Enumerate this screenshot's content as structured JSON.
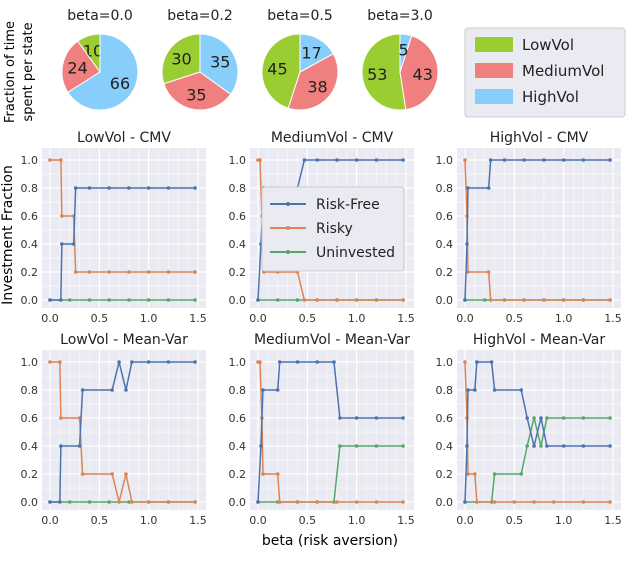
{
  "colors": {
    "LowVol": "#9acd32",
    "MediumVol": "#f08080",
    "HighVol": "#87cefa",
    "Risk-Free": "#4c72b0",
    "Risky": "#dd8452",
    "Uninvested": "#55a868",
    "plot_bg": "#eaeaf2"
  },
  "pie_ylabel": [
    "Fraction of time",
    "spent per state"
  ],
  "pie_legend": [
    "LowVol",
    "MediumVol",
    "HighVol"
  ],
  "pies": [
    {
      "title": "beta=0.0",
      "values": [
        10,
        24,
        66
      ]
    },
    {
      "title": "beta=0.2",
      "values": [
        30,
        35,
        35
      ]
    },
    {
      "title": "beta=0.5",
      "values": [
        45,
        38,
        17
      ]
    },
    {
      "title": "beta=3.0",
      "values": [
        53,
        43,
        5
      ]
    }
  ],
  "chart_data": {
    "type": "line",
    "ylabel": "Investment Fraction",
    "xlabel": "beta (risk aversion)",
    "xlim": [
      0,
      1.5
    ],
    "ylim": [
      0,
      1
    ],
    "xticks": [
      "0.0",
      "0.5",
      "1.0",
      "1.5"
    ],
    "yticks": [
      "0.0",
      "0.2",
      "0.4",
      "0.6",
      "0.8",
      "1.0"
    ],
    "grid": true,
    "legend": {
      "entries": [
        "Risk-Free",
        "Risky",
        "Uninvested"
      ],
      "placement": "center (MediumVol - CMV panel)"
    },
    "panels": [
      {
        "title": "LowVol - CMV",
        "series": [
          {
            "name": "Risk-Free",
            "points": [
              [
                0,
                0
              ],
              [
                0.11,
                0
              ],
              [
                0.12,
                0.4
              ],
              [
                0.24,
                0.4
              ],
              [
                0.26,
                0.8
              ],
              [
                0.4,
                0.8
              ],
              [
                0.6,
                0.8
              ],
              [
                0.8,
                0.8
              ],
              [
                1.0,
                0.8
              ],
              [
                1.2,
                0.8
              ],
              [
                1.47,
                0.8
              ]
            ]
          },
          {
            "name": "Risky",
            "points": [
              [
                0,
                1
              ],
              [
                0.11,
                1
              ],
              [
                0.12,
                0.6
              ],
              [
                0.24,
                0.6
              ],
              [
                0.26,
                0.2
              ],
              [
                0.4,
                0.2
              ],
              [
                0.6,
                0.2
              ],
              [
                0.8,
                0.2
              ],
              [
                1.0,
                0.2
              ],
              [
                1.2,
                0.2
              ],
              [
                1.47,
                0.2
              ]
            ]
          },
          {
            "name": "Uninvested",
            "points": [
              [
                0,
                0
              ],
              [
                0.2,
                0
              ],
              [
                0.4,
                0
              ],
              [
                0.6,
                0
              ],
              [
                0.8,
                0
              ],
              [
                1.0,
                0
              ],
              [
                1.2,
                0
              ],
              [
                1.47,
                0
              ]
            ]
          }
        ]
      },
      {
        "title": "MediumVol - CMV",
        "series": [
          {
            "name": "Risk-Free",
            "points": [
              [
                0,
                0
              ],
              [
                0.03,
                0.4
              ],
              [
                0.06,
                0.8
              ],
              [
                0.2,
                0.8
              ],
              [
                0.4,
                0.8
              ],
              [
                0.47,
                1.0
              ],
              [
                0.6,
                1.0
              ],
              [
                0.8,
                1.0
              ],
              [
                1.0,
                1.0
              ],
              [
                1.2,
                1.0
              ],
              [
                1.47,
                1.0
              ]
            ]
          },
          {
            "name": "Risky",
            "points": [
              [
                0,
                1
              ],
              [
                0.02,
                1
              ],
              [
                0.04,
                0.6
              ],
              [
                0.06,
                0.2
              ],
              [
                0.2,
                0.2
              ],
              [
                0.4,
                0.2
              ],
              [
                0.47,
                0
              ],
              [
                0.6,
                0
              ],
              [
                0.8,
                0
              ],
              [
                1.0,
                0
              ],
              [
                1.2,
                0
              ],
              [
                1.47,
                0
              ]
            ]
          },
          {
            "name": "Uninvested",
            "points": [
              [
                0,
                0
              ],
              [
                0.2,
                0
              ],
              [
                0.4,
                0
              ],
              [
                0.6,
                0
              ],
              [
                0.8,
                0
              ],
              [
                1.0,
                0
              ],
              [
                1.2,
                0
              ],
              [
                1.47,
                0
              ]
            ]
          }
        ]
      },
      {
        "title": "HighVol - CMV",
        "series": [
          {
            "name": "Risk-Free",
            "points": [
              [
                0,
                0
              ],
              [
                0.02,
                0.4
              ],
              [
                0.03,
                0.8
              ],
              [
                0.24,
                0.8
              ],
              [
                0.26,
                1.0
              ],
              [
                0.4,
                1.0
              ],
              [
                0.6,
                1.0
              ],
              [
                0.8,
                1.0
              ],
              [
                1.0,
                1.0
              ],
              [
                1.2,
                1.0
              ],
              [
                1.47,
                1.0
              ]
            ]
          },
          {
            "name": "Risky",
            "points": [
              [
                0,
                1
              ],
              [
                0.02,
                0.6
              ],
              [
                0.03,
                0.2
              ],
              [
                0.24,
                0.2
              ],
              [
                0.26,
                0
              ],
              [
                0.4,
                0
              ],
              [
                0.6,
                0
              ],
              [
                0.8,
                0
              ],
              [
                1.0,
                0
              ],
              [
                1.2,
                0
              ],
              [
                1.47,
                0
              ]
            ]
          },
          {
            "name": "Uninvested",
            "points": [
              [
                0,
                0
              ],
              [
                0.2,
                0
              ],
              [
                0.4,
                0
              ],
              [
                0.6,
                0
              ],
              [
                0.8,
                0
              ],
              [
                1.0,
                0
              ],
              [
                1.2,
                0
              ],
              [
                1.47,
                0
              ]
            ]
          }
        ]
      },
      {
        "title": "LowVol - Mean-Var",
        "series": [
          {
            "name": "Risk-Free",
            "points": [
              [
                0,
                0
              ],
              [
                0.1,
                0
              ],
              [
                0.11,
                0.4
              ],
              [
                0.3,
                0.4
              ],
              [
                0.33,
                0.8
              ],
              [
                0.63,
                0.8
              ],
              [
                0.7,
                1.0
              ],
              [
                0.77,
                0.8
              ],
              [
                0.83,
                1.0
              ],
              [
                1.0,
                1.0
              ],
              [
                1.2,
                1.0
              ],
              [
                1.47,
                1.0
              ]
            ]
          },
          {
            "name": "Risky",
            "points": [
              [
                0,
                1
              ],
              [
                0.1,
                1
              ],
              [
                0.11,
                0.6
              ],
              [
                0.3,
                0.6
              ],
              [
                0.33,
                0.2
              ],
              [
                0.63,
                0.2
              ],
              [
                0.7,
                0
              ],
              [
                0.77,
                0.2
              ],
              [
                0.83,
                0
              ],
              [
                1.0,
                0
              ],
              [
                1.2,
                0
              ],
              [
                1.47,
                0
              ]
            ]
          },
          {
            "name": "Uninvested",
            "points": [
              [
                0,
                0
              ],
              [
                0.2,
                0
              ],
              [
                0.4,
                0
              ],
              [
                0.6,
                0
              ],
              [
                0.8,
                0
              ],
              [
                1.0,
                0
              ],
              [
                1.2,
                0
              ],
              [
                1.47,
                0
              ]
            ]
          }
        ]
      },
      {
        "title": "MediumVol - Mean-Var",
        "series": [
          {
            "name": "Risk-Free",
            "points": [
              [
                0,
                0
              ],
              [
                0.03,
                0.4
              ],
              [
                0.05,
                0.8
              ],
              [
                0.2,
                0.8
              ],
              [
                0.22,
                1.0
              ],
              [
                0.4,
                1.0
              ],
              [
                0.6,
                1.0
              ],
              [
                0.77,
                1.0
              ],
              [
                0.83,
                0.6
              ],
              [
                1.0,
                0.6
              ],
              [
                1.2,
                0.6
              ],
              [
                1.47,
                0.6
              ]
            ]
          },
          {
            "name": "Risky",
            "points": [
              [
                0,
                1
              ],
              [
                0.02,
                1
              ],
              [
                0.04,
                0.6
              ],
              [
                0.05,
                0.2
              ],
              [
                0.2,
                0.2
              ],
              [
                0.22,
                0
              ],
              [
                0.4,
                0
              ],
              [
                0.6,
                0
              ],
              [
                0.8,
                0
              ],
              [
                1.0,
                0
              ],
              [
                1.2,
                0
              ],
              [
                1.47,
                0
              ]
            ]
          },
          {
            "name": "Uninvested",
            "points": [
              [
                0,
                0
              ],
              [
                0.2,
                0
              ],
              [
                0.4,
                0
              ],
              [
                0.6,
                0
              ],
              [
                0.77,
                0
              ],
              [
                0.83,
                0.4
              ],
              [
                1.0,
                0.4
              ],
              [
                1.2,
                0.4
              ],
              [
                1.47,
                0.4
              ]
            ]
          }
        ]
      },
      {
        "title": "HighVol - Mean-Var",
        "series": [
          {
            "name": "Risk-Free",
            "points": [
              [
                0,
                0
              ],
              [
                0.02,
                0.4
              ],
              [
                0.03,
                0.8
              ],
              [
                0.1,
                0.8
              ],
              [
                0.12,
                1.0
              ],
              [
                0.27,
                1.0
              ],
              [
                0.3,
                0.8
              ],
              [
                0.57,
                0.8
              ],
              [
                0.63,
                0.6
              ],
              [
                0.7,
                0.4
              ],
              [
                0.77,
                0.6
              ],
              [
                0.83,
                0.4
              ],
              [
                1.0,
                0.4
              ],
              [
                1.2,
                0.4
              ],
              [
                1.47,
                0.4
              ]
            ]
          },
          {
            "name": "Risky",
            "points": [
              [
                0,
                1
              ],
              [
                0.02,
                0.6
              ],
              [
                0.03,
                0.2
              ],
              [
                0.1,
                0.2
              ],
              [
                0.12,
                0
              ],
              [
                0.3,
                0
              ],
              [
                0.5,
                0
              ],
              [
                0.7,
                0
              ],
              [
                0.9,
                0
              ],
              [
                1.2,
                0
              ],
              [
                1.47,
                0
              ]
            ]
          },
          {
            "name": "Uninvested",
            "points": [
              [
                0,
                0
              ],
              [
                0.27,
                0
              ],
              [
                0.3,
                0.2
              ],
              [
                0.57,
                0.2
              ],
              [
                0.63,
                0.4
              ],
              [
                0.7,
                0.6
              ],
              [
                0.77,
                0.4
              ],
              [
                0.83,
                0.6
              ],
              [
                1.0,
                0.6
              ],
              [
                1.2,
                0.6
              ],
              [
                1.47,
                0.6
              ]
            ]
          }
        ]
      }
    ]
  }
}
